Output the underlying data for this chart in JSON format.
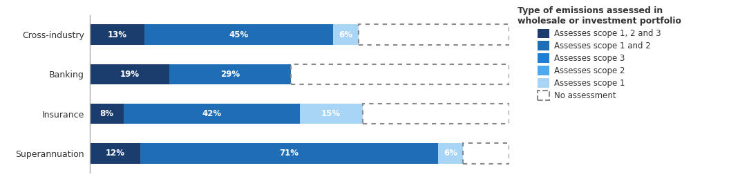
{
  "categories": [
    "Cross-industry",
    "Banking",
    "Insurance",
    "Superannuation"
  ],
  "segments": {
    "scope123": [
      13,
      19,
      8,
      12
    ],
    "scope12": [
      45,
      29,
      42,
      71
    ],
    "scope1": [
      6,
      0,
      15,
      6
    ],
    "no_assessment": [
      36,
      52,
      35,
      11
    ]
  },
  "colors": {
    "scope123": "#1a3d6e",
    "scope12": "#1e6db5",
    "scope3": "#1e7ed4",
    "scope2": "#4eaaec",
    "scope1": "#a8d4f5",
    "no_assessment": "none"
  },
  "labels": {
    "scope123": "Assesses scope 1, 2 and 3",
    "scope12": "Assesses scope 1 and 2",
    "scope3": "Assesses scope 3",
    "scope2": "Assesses scope 2",
    "scope1": "Assesses scope 1",
    "no_assessment": "No assessment"
  },
  "legend_title": "Type of emissions assessed in\nwholesale or investment portfolio",
  "bar_height": 0.52,
  "fig_bg": "#ffffff",
  "text_color": "#333333",
  "bar_label_color": "#ffffff",
  "bar_label_fontsize": 8.5,
  "ylabel_fontsize": 9,
  "legend_fontsize": 8.5,
  "legend_title_fontsize": 9
}
